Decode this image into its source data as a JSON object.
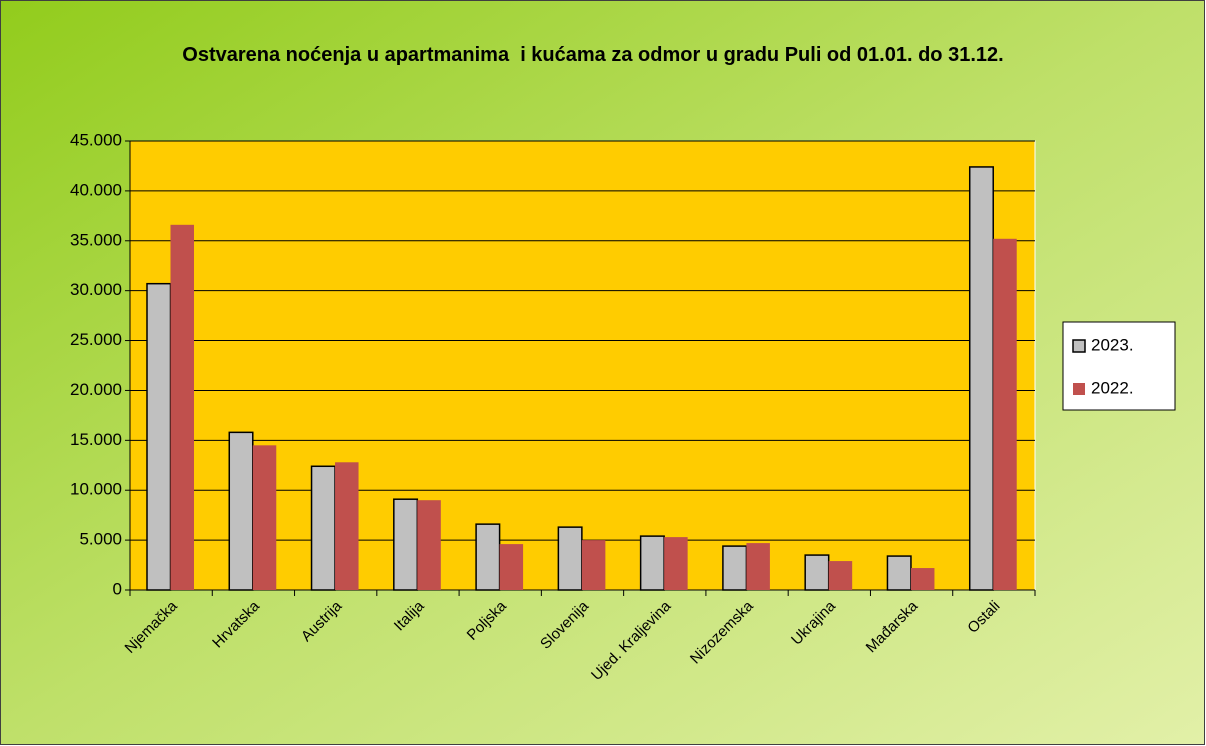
{
  "chart_data": {
    "type": "bar",
    "title": "Ostvarena noćenja u apartmanima  i kućama za odmor u gradu Puli od 01.01. do 31.12.",
    "categories": [
      "Njemačka",
      "Hrvatska",
      "Austrija",
      "Italija",
      "Poljska",
      "Slovenija",
      "Ujed. Kraljevina",
      "Nizozemska",
      "Ukrajina",
      "Mađarska",
      "Ostali"
    ],
    "series": [
      {
        "name": "2023.",
        "color": "#c0c0c0",
        "values": [
          30700,
          15800,
          12400,
          9100,
          6600,
          6300,
          5400,
          4400,
          3500,
          3400,
          42400
        ]
      },
      {
        "name": "2022.",
        "color": "#c0504d",
        "values": [
          36600,
          14500,
          12800,
          9000,
          4600,
          5000,
          5300,
          4700,
          2900,
          2200,
          35200
        ]
      }
    ],
    "ylim": [
      0,
      45000
    ],
    "yticks": [
      0,
      {
        "value": 5000,
        "label": "5.000"
      },
      {
        "value": 10000,
        "label": "10.000"
      },
      {
        "value": 15000,
        "label": "15.000"
      },
      {
        "value": 20000,
        "label": "20.000"
      },
      {
        "value": 25000,
        "label": "25.000"
      },
      {
        "value": 30000,
        "label": "30.000"
      },
      {
        "value": 35000,
        "label": "35.000"
      },
      {
        "value": 40000,
        "label": "40.000"
      },
      {
        "value": 45000,
        "label": "45.000"
      }
    ],
    "grid": true,
    "legend": "right",
    "plot_background": "#ffcc00"
  }
}
